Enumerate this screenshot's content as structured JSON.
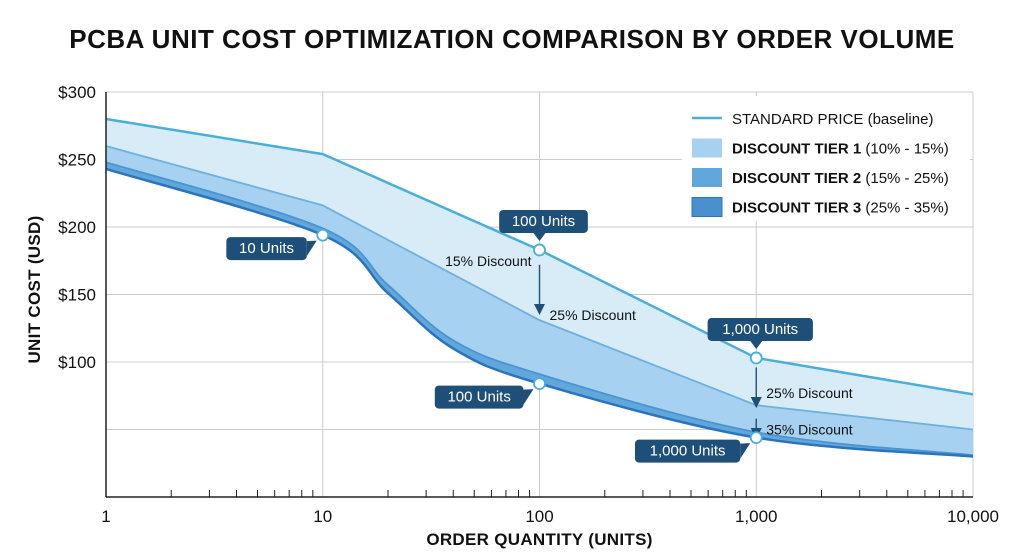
{
  "chart_data": {
    "type": "area",
    "title": "PCBA UNIT COST OPTIMIZATION COMPARISON BY ORDER VOLUME",
    "xlabel": "ORDER QUANTITY (UNITS)",
    "ylabel": "UNIT COST (USD)",
    "x_scale": "log",
    "xlim": [
      1,
      10000
    ],
    "ylim": [
      0,
      300
    ],
    "x_ticks": [
      {
        "value": 1,
        "label": "1"
      },
      {
        "value": 10,
        "label": "10"
      },
      {
        "value": 100,
        "label": "100"
      },
      {
        "value": 1000,
        "label": "1,000"
      },
      {
        "value": 10000,
        "label": "10,000"
      }
    ],
    "y_ticks": [
      {
        "value": 300,
        "label": "$300"
      },
      {
        "value": 250,
        "label": "$250"
      },
      {
        "value": 200,
        "label": "$200"
      },
      {
        "value": 150,
        "label": "$150"
      },
      {
        "value": 100,
        "label": "$100"
      },
      {
        "value": 50,
        "label": ""
      }
    ],
    "grid": true,
    "legend_position": "top-right",
    "series": [
      {
        "name": "STANDARD PRICE (baseline)",
        "name_bold": "",
        "name_rest": "STANDARD PRICE (baseline)",
        "color": "#4aaed8",
        "fill": "#d8ecf8",
        "x": [
          1,
          10,
          100,
          1000,
          10000
        ],
        "values": [
          280,
          254,
          183,
          103,
          76
        ]
      },
      {
        "name": "DISCOUNT TIER 1 (10% - 15%)",
        "name_bold": "DISCOUNT TIER 1",
        "name_rest": " (10% - 15%)",
        "color": "#6fb0de",
        "fill": "#a6d1f0",
        "x": [
          1,
          10,
          100,
          1000,
          10000
        ],
        "values": [
          260,
          216,
          131,
          68,
          50
        ]
      },
      {
        "name": "DISCOUNT TIER 2 (15% - 25%)",
        "name_bold": "DISCOUNT TIER 2",
        "name_rest": " (15% - 25%)",
        "color": "#4a94cf",
        "fill": "#62a7dc",
        "x": [
          1,
          10,
          20,
          40,
          100,
          1000,
          10000
        ],
        "values": [
          248,
          199,
          157,
          116,
          91,
          48,
          31
        ]
      },
      {
        "name": "DISCOUNT TIER 3 (25% - 35%)",
        "name_bold": "DISCOUNT TIER 3",
        "name_rest": " (25% - 35%)",
        "color": "#2a74bd",
        "fill": "#4a8fd0",
        "x": [
          1,
          10,
          20,
          40,
          100,
          1000,
          10000
        ],
        "values": [
          243,
          194,
          151,
          110,
          84,
          44,
          30
        ]
      }
    ],
    "points": [
      {
        "x": 10,
        "y": 194,
        "label": "10 Units",
        "side": "left"
      },
      {
        "x": 100,
        "y": 183,
        "label": "100 Units",
        "side": "above"
      },
      {
        "x": 100,
        "y": 84,
        "label": "100 Units",
        "side": "left"
      },
      {
        "x": 1000,
        "y": 103,
        "label": "1,000 Units",
        "side": "above"
      },
      {
        "x": 1000,
        "y": 44,
        "label": "1,000 Units",
        "side": "left"
      }
    ],
    "annotations": [
      {
        "text": "15% Discount",
        "x": 100,
        "y": 175,
        "anchor": "end"
      },
      {
        "text": "25% Discount",
        "x": 100,
        "y": 135,
        "anchor": "start"
      },
      {
        "text": "25% Discount",
        "x": 1000,
        "y": 77,
        "anchor": "start"
      },
      {
        "text": "35% Discount",
        "x": 1000,
        "y": 50,
        "anchor": "start"
      }
    ],
    "arrows": [
      {
        "x": 100,
        "from": 172,
        "to": 139
      },
      {
        "x": 1000,
        "from": 96,
        "to": 70
      },
      {
        "x": 1000,
        "from": 58,
        "to": 47
      }
    ]
  },
  "colors": {
    "axis": "#222222",
    "grid": "#cccccc",
    "callout_bg": "#1d4f78",
    "marker_stroke": "#4aaed8"
  }
}
